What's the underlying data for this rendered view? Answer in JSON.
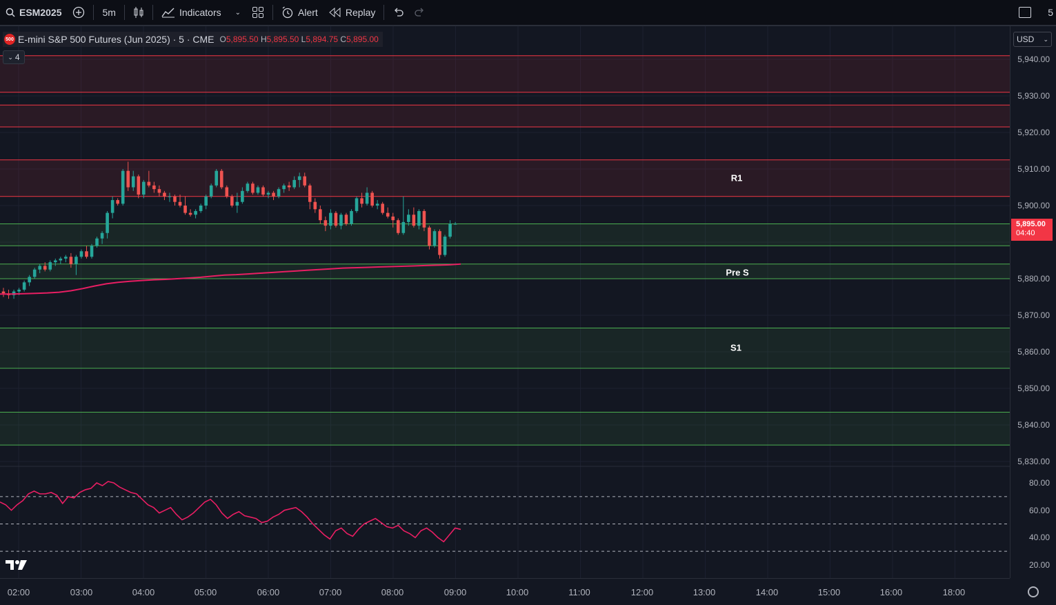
{
  "toolbar": {
    "symbol": "ESM2025",
    "timeframe": "5m",
    "indicators_label": "Indicators",
    "alert_label": "Alert",
    "replay_label": "Replay",
    "right_partial": "5"
  },
  "legend": {
    "badge": "500",
    "title": "E-mini S&P 500 Futures (Jun 2025) · 5 · CME",
    "open_label": "O",
    "open": "5,895.50",
    "high_label": "H",
    "high": "5,895.50",
    "low_label": "L",
    "low": "5,894.75",
    "close_label": "C",
    "close": "5,895.00",
    "indicator_count": "4"
  },
  "price_axis": {
    "currency": "USD",
    "current_price": "5,895.00",
    "countdown": "04:40",
    "labels": [
      "5,940.00",
      "5,930.00",
      "5,920.00",
      "5,910.00",
      "5,900.00",
      "5,890.00",
      "5,880.00",
      "5,870.00",
      "5,860.00",
      "5,850.00",
      "5,840.00",
      "5,830.00"
    ],
    "rsi_labels": [
      "80.00",
      "60.00",
      "40.00",
      "20.00"
    ]
  },
  "time_axis": {
    "labels": [
      "02:00",
      "03:00",
      "04:00",
      "05:00",
      "06:00",
      "07:00",
      "08:00",
      "09:00",
      "10:00",
      "11:00",
      "12:00",
      "13:00",
      "14:00",
      "15:00",
      "16:00",
      "18:00"
    ]
  },
  "zones": {
    "resistance": [
      {
        "top": 5941,
        "bottom": 5931,
        "label": ""
      },
      {
        "top": 5927.5,
        "bottom": 5921.5,
        "label": ""
      },
      {
        "top": 5912.5,
        "bottom": 5902.5,
        "label": "R1"
      }
    ],
    "support": [
      {
        "top": 5895,
        "bottom": 5889,
        "label": ""
      },
      {
        "top": 5884,
        "bottom": 5880,
        "label": "Pre S"
      },
      {
        "top": 5866.5,
        "bottom": 5855.5,
        "label": "S1"
      },
      {
        "top": 5843.5,
        "bottom": 5834.5,
        "label": ""
      }
    ]
  },
  "colors": {
    "up": "#26a69a",
    "down": "#ef5350",
    "resistance_line": "#f23645",
    "support_line": "#4caf50",
    "ma_line": "#e91e63",
    "rsi_line": "#e91e63"
  },
  "chart_data": {
    "type": "candlestick",
    "timeframe": "5m",
    "ylim": [
      5826,
      5944
    ],
    "candles_ohlc": [
      [
        5876.5,
        5877.5,
        5875,
        5876
      ],
      [
        5876,
        5877,
        5874.5,
        5875.5
      ],
      [
        5875.5,
        5877,
        5874.5,
        5876.5
      ],
      [
        5876.5,
        5877.5,
        5875.5,
        5877
      ],
      [
        5877,
        5879.5,
        5876.5,
        5879
      ],
      [
        5879,
        5881,
        5878,
        5880.5
      ],
      [
        5880.5,
        5883,
        5880,
        5882.5
      ],
      [
        5882.5,
        5884,
        5881.5,
        5883.5
      ],
      [
        5883.5,
        5884.5,
        5882,
        5882.5
      ],
      [
        5882.5,
        5885,
        5882,
        5884.5
      ],
      [
        5884.5,
        5885.5,
        5883.5,
        5885
      ],
      [
        5885,
        5886,
        5884,
        5885.5
      ],
      [
        5885.5,
        5886.5,
        5884.5,
        5886
      ],
      [
        5886,
        5887,
        5883,
        5884
      ],
      [
        5884,
        5886.5,
        5881,
        5886
      ],
      [
        5886,
        5888,
        5885.5,
        5887.5
      ],
      [
        5887.5,
        5889,
        5885.5,
        5886
      ],
      [
        5886,
        5889.5,
        5885.5,
        5889
      ],
      [
        5889,
        5891.5,
        5888.5,
        5891
      ],
      [
        5891,
        5893,
        5889.5,
        5892.5
      ],
      [
        5892.5,
        5898.5,
        5891,
        5898
      ],
      [
        5898,
        5902.5,
        5896.5,
        5901.5
      ],
      [
        5901.5,
        5902,
        5900,
        5900.5
      ],
      [
        5900.5,
        5910,
        5900,
        5909.5
      ],
      [
        5909.5,
        5912,
        5904,
        5905
      ],
      [
        5905,
        5909.5,
        5904,
        5908
      ],
      [
        5908,
        5908.5,
        5902,
        5903
      ],
      [
        5903,
        5907,
        5902,
        5906.5
      ],
      [
        5906.5,
        5909.5,
        5905,
        5905.5
      ],
      [
        5905.5,
        5906.5,
        5903.5,
        5904.5
      ],
      [
        5904.5,
        5905.5,
        5902.5,
        5903.5
      ],
      [
        5903.5,
        5904,
        5901.5,
        5902.5
      ],
      [
        5902.5,
        5903.5,
        5901,
        5902.5
      ],
      [
        5902.5,
        5903,
        5900,
        5901
      ],
      [
        5901,
        5903,
        5899.5,
        5900
      ],
      [
        5900,
        5902.5,
        5897.5,
        5898
      ],
      [
        5898,
        5899,
        5897,
        5897.5
      ],
      [
        5897.5,
        5899,
        5896.5,
        5898.5
      ],
      [
        5898.5,
        5900.5,
        5898,
        5900
      ],
      [
        5900,
        5903,
        5899,
        5902.5
      ],
      [
        5902.5,
        5906,
        5902,
        5905.5
      ],
      [
        5905.5,
        5910,
        5905,
        5909.5
      ],
      [
        5909.5,
        5910,
        5904.5,
        5905
      ],
      [
        5905,
        5905.5,
        5902,
        5902.5
      ],
      [
        5902.5,
        5903,
        5899.5,
        5900
      ],
      [
        5900,
        5903.5,
        5898,
        5901
      ],
      [
        5901,
        5905,
        5900.5,
        5904
      ],
      [
        5904,
        5906.5,
        5903.5,
        5906
      ],
      [
        5906,
        5906.5,
        5903,
        5903.5
      ],
      [
        5903.5,
        5905.5,
        5903,
        5905
      ],
      [
        5905,
        5905.5,
        5902.5,
        5903
      ],
      [
        5903,
        5904,
        5902,
        5903.5
      ],
      [
        5903.5,
        5904,
        5901.5,
        5902.5
      ],
      [
        5902.5,
        5905,
        5902,
        5904.5
      ],
      [
        5904.5,
        5906,
        5903.5,
        5905.5
      ],
      [
        5905.5,
        5906.5,
        5904,
        5905
      ],
      [
        5905,
        5908,
        5904.5,
        5907
      ],
      [
        5907,
        5909,
        5905,
        5908
      ],
      [
        5908,
        5909,
        5905,
        5905.5
      ],
      [
        5905.5,
        5906,
        5899,
        5901
      ],
      [
        5901,
        5902,
        5898,
        5899
      ],
      [
        5899,
        5900,
        5895,
        5896
      ],
      [
        5896,
        5897,
        5893,
        5894.5
      ],
      [
        5894.5,
        5899,
        5893.5,
        5898
      ],
      [
        5898,
        5898.5,
        5894,
        5894.5
      ],
      [
        5894.5,
        5898,
        5893.5,
        5897.5
      ],
      [
        5897.5,
        5898,
        5894.5,
        5895
      ],
      [
        5895,
        5899,
        5894.5,
        5898.5
      ],
      [
        5898.5,
        5902.5,
        5898,
        5902
      ],
      [
        5902,
        5903.5,
        5899.5,
        5900.5
      ],
      [
        5900.5,
        5905,
        5900,
        5903.5
      ],
      [
        5903.5,
        5904,
        5899.5,
        5900
      ],
      [
        5900,
        5901.5,
        5899,
        5900.5
      ],
      [
        5900.5,
        5901,
        5897.5,
        5898
      ],
      [
        5898,
        5899.5,
        5896.5,
        5897
      ],
      [
        5897,
        5898,
        5894,
        5896
      ],
      [
        5896,
        5896.5,
        5892,
        5892.5
      ],
      [
        5892.5,
        5902.5,
        5892,
        5895.5
      ],
      [
        5895.5,
        5899,
        5894.5,
        5897.5
      ],
      [
        5897.5,
        5899.5,
        5894,
        5894.5
      ],
      [
        5894.5,
        5899,
        5893.5,
        5898.5
      ],
      [
        5898.5,
        5899,
        5893,
        5894
      ],
      [
        5894,
        5894.5,
        5888,
        5889
      ],
      [
        5889,
        5893.5,
        5888.5,
        5893
      ],
      [
        5893,
        5893.5,
        5885.5,
        5886.5
      ],
      [
        5886.5,
        5892,
        5886,
        5891.5
      ],
      [
        5891.5,
        5896,
        5891,
        5895
      ],
      [
        5895,
        5895.5,
        5894.75,
        5895
      ]
    ],
    "moving_average": [
      5875.8,
      5875.8,
      5875.9,
      5876,
      5876.1,
      5876.3,
      5876.7,
      5877.3,
      5878,
      5878.6,
      5879,
      5879.3,
      5879.5,
      5879.7,
      5879.8,
      5880,
      5880.2,
      5880.4,
      5880.7,
      5881,
      5881.1,
      5881.3,
      5881.5,
      5881.7,
      5881.9,
      5882.1,
      5882.3,
      5882.5,
      5882.7,
      5882.9,
      5883,
      5883.1,
      5883.2,
      5883.3,
      5883.4,
      5883.5,
      5883.6,
      5883.7,
      5883.8,
      5884
    ],
    "rsi": [
      66,
      64,
      60,
      64,
      67,
      72,
      74,
      72,
      72,
      73,
      71,
      65,
      70,
      69,
      73,
      75,
      76,
      80,
      78,
      81,
      80,
      77,
      75,
      73,
      72,
      68,
      64,
      62,
      58,
      60,
      62,
      57,
      53,
      55,
      58,
      62,
      66,
      68,
      64,
      58,
      54,
      57,
      59,
      56,
      55,
      54,
      51,
      52,
      55,
      57,
      60,
      61,
      62,
      59,
      55,
      50,
      46,
      42,
      39,
      45,
      47,
      43,
      41,
      46,
      50,
      52,
      54,
      51,
      48,
      47,
      49,
      45,
      43,
      40,
      45,
      47,
      44,
      40,
      37,
      42,
      47,
      46
    ],
    "rsi_levels": [
      70,
      50,
      30
    ],
    "rsi_ylim": [
      10,
      90
    ]
  }
}
